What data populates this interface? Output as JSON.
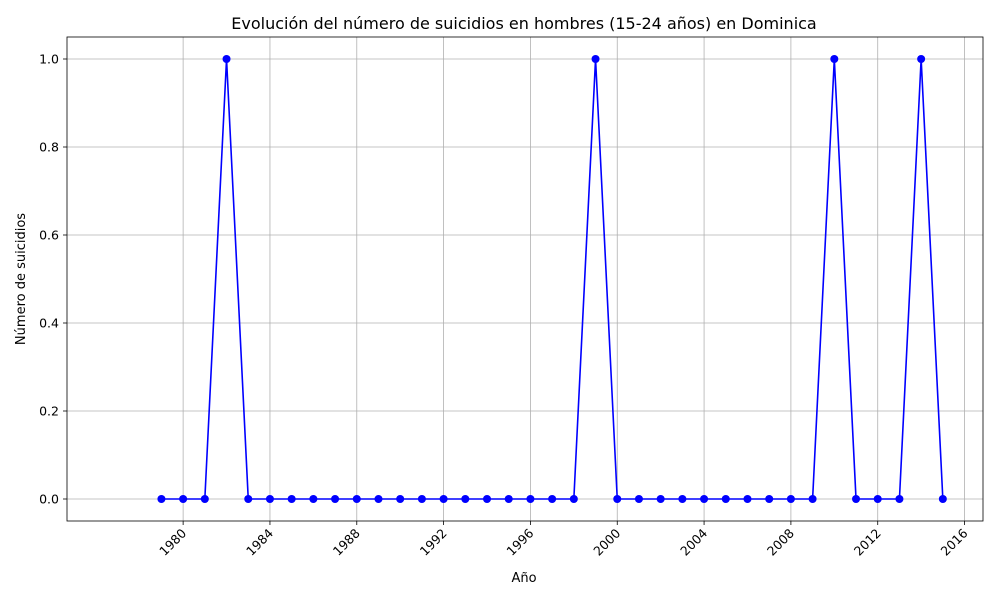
{
  "chart_data": {
    "type": "line",
    "title": "Evolución del número de suicidios en hombres (15-24 años) en Dominica",
    "xlabel": "Año",
    "ylabel": "Número de suicidios",
    "xlim": [
      1974.65,
      2016.85
    ],
    "ylim": [
      -0.05,
      1.05
    ],
    "xticks": [
      1980,
      1984,
      1988,
      1992,
      1996,
      2000,
      2004,
      2008,
      2012,
      2016
    ],
    "yticks": [
      0.0,
      0.2,
      0.4,
      0.6,
      0.8,
      1.0
    ],
    "ytick_labels": [
      "0.0",
      "0.2",
      "0.4",
      "0.6",
      "0.8",
      "1.0"
    ],
    "grid": true,
    "series": [
      {
        "color": "#0000ff",
        "marker": "circle",
        "x": [
          1979,
          1980,
          1981,
          1982,
          1983,
          1984,
          1985,
          1986,
          1987,
          1988,
          1989,
          1990,
          1991,
          1992,
          1993,
          1994,
          1995,
          1996,
          1997,
          1998,
          1999,
          2000,
          2001,
          2002,
          2003,
          2004,
          2005,
          2006,
          2007,
          2008,
          2009,
          2010,
          2011,
          2012,
          2013,
          2014,
          2015
        ],
        "y": [
          0,
          0,
          0,
          1,
          0,
          0,
          0,
          0,
          0,
          0,
          0,
          0,
          0,
          0,
          0,
          0,
          0,
          0,
          0,
          0,
          1,
          0,
          0,
          0,
          0,
          0,
          0,
          0,
          0,
          0,
          0,
          1,
          0,
          0,
          0,
          1,
          0
        ]
      }
    ]
  }
}
